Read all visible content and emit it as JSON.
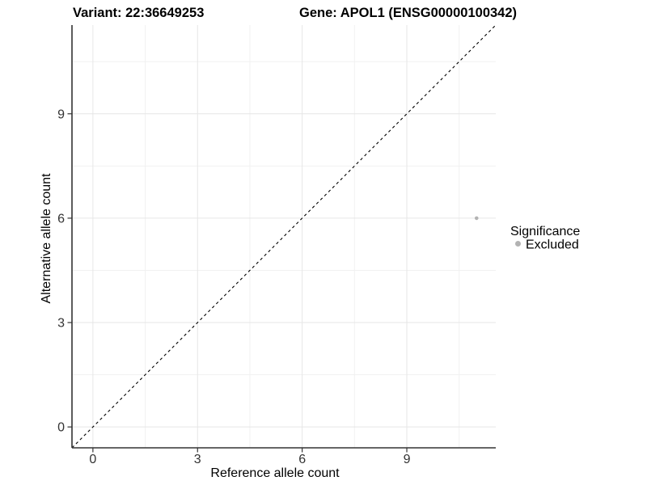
{
  "figure": {
    "title_variant": "Variant: 22:36649253",
    "title_gene": "Gene: APOL1 (ENSG00000100342)"
  },
  "chart_data": {
    "type": "scatter",
    "title": "Variant: 22:36649253    Gene: APOL1 (ENSG00000100342)",
    "xlabel": "Reference allele count",
    "ylabel": "Alternative allele count",
    "xlim": [
      -0.6,
      11.55
    ],
    "ylim": [
      -0.6,
      11.55
    ],
    "xticks": [
      0,
      3,
      6,
      9
    ],
    "yticks": [
      0,
      3,
      6,
      9
    ],
    "xticks_minor": [
      1.5,
      4.5,
      7.5,
      10.5
    ],
    "yticks_minor": [
      1.5,
      4.5,
      7.5,
      10.5
    ],
    "grid": "major+minor",
    "series": [
      {
        "name": "Excluded",
        "color": "#b3b3b3",
        "points": [
          {
            "x": 11,
            "y": 6
          }
        ]
      }
    ],
    "reference_line": {
      "type": "identity",
      "slope": 1,
      "intercept": 0,
      "style": "dashed",
      "color": "#000000"
    },
    "legend": {
      "title": "Significance",
      "position": "right",
      "entries": [
        {
          "label": "Excluded",
          "color": "#b3b3b3"
        }
      ]
    }
  },
  "style": {
    "point_color": "#b3b3b3",
    "grid_major_color": "#e6e6e6",
    "grid_minor_color": "#f1f1f1",
    "axis_color": "#333333",
    "tick_text_color": "#333333",
    "title_text_color": "#000000",
    "background": "#ffffff"
  }
}
